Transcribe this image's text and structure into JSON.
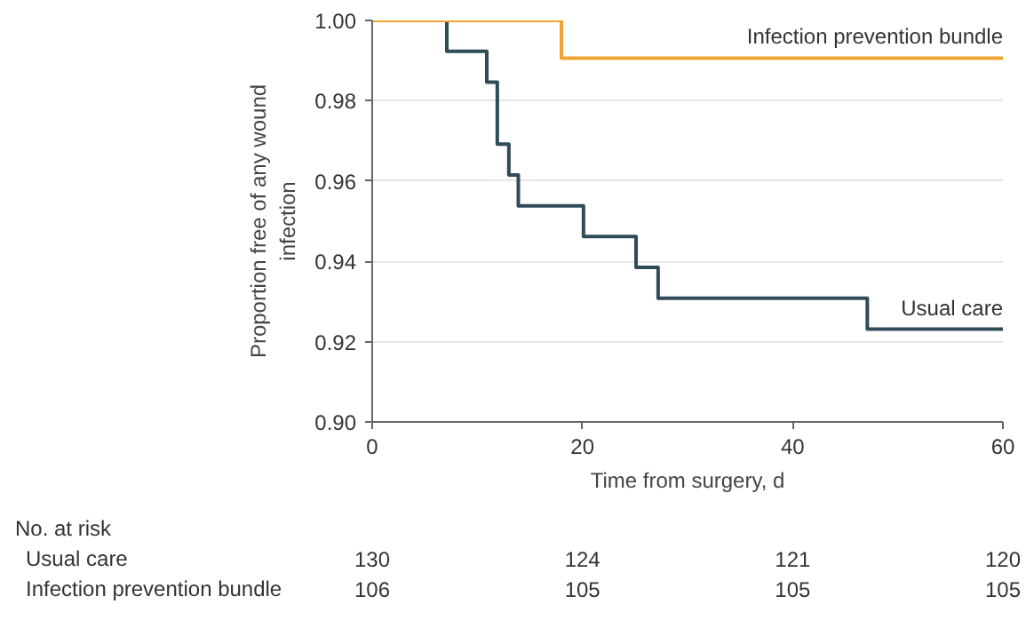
{
  "chart_data": {
    "type": "step",
    "xlabel": "Time from surgery, d",
    "ylabel": "Proportion free of any wound\ninfection",
    "xlim": [
      0,
      60
    ],
    "xticks": [
      0,
      20,
      40,
      60
    ],
    "ylim": [
      0.9,
      1.0
    ],
    "yticks": [
      {
        "value": 0.9,
        "label": "0.90"
      },
      {
        "value": 0.92,
        "label": "0.92"
      },
      {
        "value": 0.94,
        "label": "0.94"
      },
      {
        "value": 0.96,
        "label": "0.96"
      },
      {
        "value": 0.98,
        "label": "0.98"
      },
      {
        "value": 1.0,
        "label": "1.00"
      }
    ],
    "grid": "y",
    "legend": false,
    "series": [
      {
        "name": "Usual care",
        "color": "#2f4b57",
        "x": [
          0,
          7.1,
          10.9,
          11.9,
          13.0,
          13.9,
          20.1,
          25.1,
          27.2,
          47.1,
          60
        ],
        "values": [
          1.0,
          0.9923,
          0.9846,
          0.9692,
          0.9615,
          0.9538,
          0.9462,
          0.9385,
          0.9308,
          0.9231,
          0.9231
        ]
      },
      {
        "name": "Infection prevention bundle",
        "color": "#f0a530",
        "x": [
          0,
          18.0,
          60
        ],
        "values": [
          1.0,
          0.9906,
          0.9906
        ]
      }
    ],
    "annotations": [
      "No. at risk",
      "Usual care",
      "130",
      "124",
      "121",
      "120",
      "Infection prevention bundle",
      "106",
      "105",
      "105",
      "105"
    ]
  }
}
